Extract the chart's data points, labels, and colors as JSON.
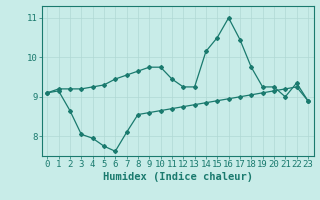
{
  "xlabel": "Humidex (Indice chaleur)",
  "background_color": "#c8ece8",
  "line_color": "#1a7a6e",
  "grid_color": "#b0d8d4",
  "xlim": [
    -0.5,
    23.5
  ],
  "ylim": [
    7.5,
    11.3
  ],
  "yticks": [
    8,
    9,
    10,
    11
  ],
  "xticks": [
    0,
    1,
    2,
    3,
    4,
    5,
    6,
    7,
    8,
    9,
    10,
    11,
    12,
    13,
    14,
    15,
    16,
    17,
    18,
    19,
    20,
    21,
    22,
    23
  ],
  "line1_x": [
    0,
    1,
    2,
    3,
    4,
    5,
    6,
    7,
    8,
    9,
    10,
    11,
    12,
    13,
    14,
    15,
    16,
    17,
    18,
    19,
    20,
    21,
    22,
    23
  ],
  "line1_y": [
    9.1,
    9.2,
    9.2,
    9.2,
    9.25,
    9.3,
    9.45,
    9.55,
    9.65,
    9.75,
    9.75,
    9.45,
    9.25,
    9.25,
    10.15,
    10.5,
    11.0,
    10.45,
    9.75,
    9.25,
    9.25,
    9.0,
    9.35,
    8.9
  ],
  "line2_x": [
    0,
    1,
    2,
    3,
    4,
    5,
    6,
    7,
    8,
    9,
    10,
    11,
    12,
    13,
    14,
    15,
    16,
    17,
    18,
    19,
    20,
    21,
    22,
    23
  ],
  "line2_y": [
    9.1,
    9.15,
    8.65,
    8.05,
    7.95,
    7.75,
    7.62,
    8.1,
    8.55,
    8.6,
    8.65,
    8.7,
    8.75,
    8.8,
    8.85,
    8.9,
    8.95,
    9.0,
    9.05,
    9.1,
    9.15,
    9.2,
    9.25,
    8.9
  ],
  "marker": "D",
  "markersize": 2.0,
  "linewidth": 0.9,
  "tick_fontsize": 6.5,
  "label_fontsize": 7.5
}
